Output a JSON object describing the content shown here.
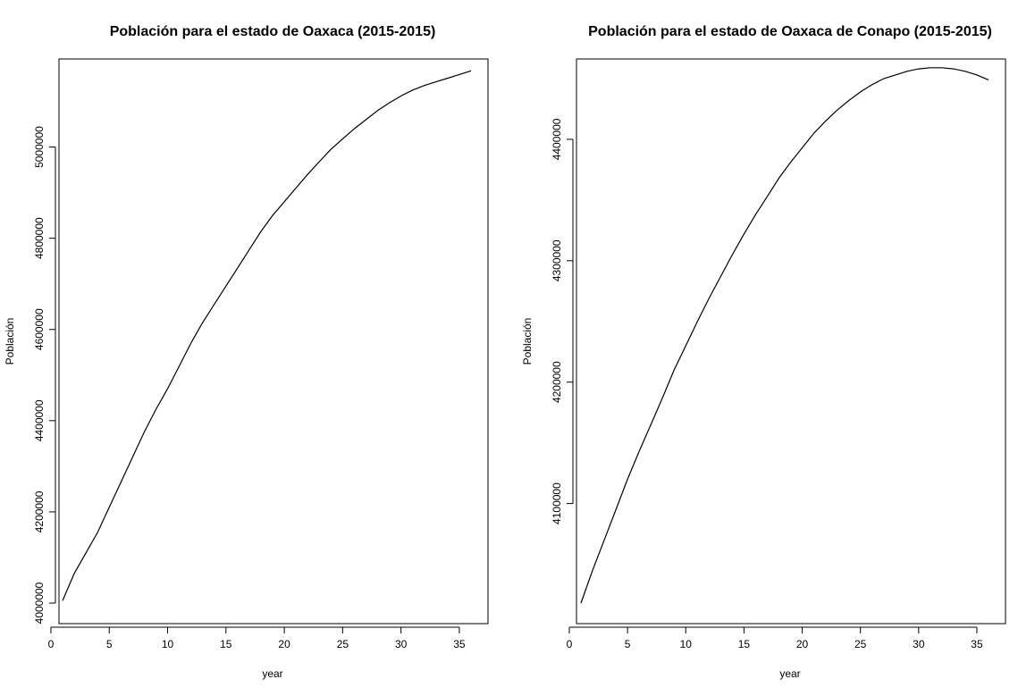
{
  "chart_data": [
    {
      "type": "line",
      "title": "Población para el estado de Oaxaca (2015-2015)",
      "xlabel": "year",
      "ylabel": "Población",
      "xlim": [
        1,
        36
      ],
      "ylim": [
        4000000,
        5150000
      ],
      "x_ticks": [
        0,
        5,
        10,
        15,
        20,
        25,
        30,
        35
      ],
      "y_ticks": [
        4000000,
        4200000,
        4400000,
        4600000,
        4800000,
        5000000
      ],
      "x_tick_labels": [
        "0",
        "5",
        "10",
        "15",
        "20",
        "25",
        "30",
        "35"
      ],
      "y_tick_labels": [
        "4000000",
        "4200000",
        "4400000",
        "4600000",
        "4800000",
        "5000000"
      ],
      "grid": false,
      "series": [
        {
          "color": "#000000",
          "x": [
            1,
            2,
            3,
            4,
            5,
            6,
            7,
            8,
            9,
            10,
            11,
            12,
            13,
            14,
            15,
            16,
            17,
            18,
            19,
            20,
            21,
            22,
            23,
            24,
            25,
            26,
            27,
            28,
            29,
            30,
            31,
            32,
            33,
            34,
            35,
            36
          ],
          "values": [
            4005000,
            4065000,
            4110000,
            4155000,
            4210000,
            4265000,
            4320000,
            4375000,
            4425000,
            4470000,
            4520000,
            4570000,
            4615000,
            4655000,
            4695000,
            4735000,
            4775000,
            4815000,
            4850000,
            4880000,
            4910000,
            4940000,
            4968000,
            4995000,
            5018000,
            5040000,
            5060000,
            5080000,
            5097000,
            5112000,
            5125000,
            5135000,
            5143000,
            5151000,
            5159000,
            5167000
          ]
        }
      ]
    },
    {
      "type": "line",
      "title": "Población para el estado de Oaxaca de Conapo (2015-2015)",
      "xlabel": "year",
      "ylabel": "Población",
      "xlim": [
        1,
        36
      ],
      "ylim": [
        4018000,
        4450000
      ],
      "x_ticks": [
        0,
        5,
        10,
        15,
        20,
        25,
        30,
        35
      ],
      "y_ticks": [
        4100000,
        4200000,
        4300000,
        4400000
      ],
      "x_tick_labels": [
        "0",
        "5",
        "10",
        "15",
        "20",
        "25",
        "30",
        "35"
      ],
      "y_tick_labels": [
        "4100000",
        "4200000",
        "4300000",
        "4400000"
      ],
      "grid": false,
      "series": [
        {
          "color": "#000000",
          "x": [
            1,
            2,
            3,
            4,
            5,
            6,
            7,
            8,
            9,
            10,
            11,
            12,
            13,
            14,
            15,
            16,
            17,
            18,
            19,
            20,
            21,
            22,
            23,
            24,
            25,
            26,
            27,
            28,
            29,
            30,
            31,
            32,
            33,
            34,
            35,
            36
          ],
          "values": [
            4018000,
            4045000,
            4070000,
            4095000,
            4120000,
            4143000,
            4165000,
            4187000,
            4210000,
            4230000,
            4250000,
            4269000,
            4287000,
            4305000,
            4322000,
            4338000,
            4353000,
            4368000,
            4381000,
            4393000,
            4405000,
            4415000,
            4424000,
            4432000,
            4439000,
            4445000,
            4450000,
            4453000,
            4456000,
            4458000,
            4459000,
            4459000,
            4458000,
            4456000,
            4453000,
            4449000
          ]
        }
      ]
    }
  ]
}
